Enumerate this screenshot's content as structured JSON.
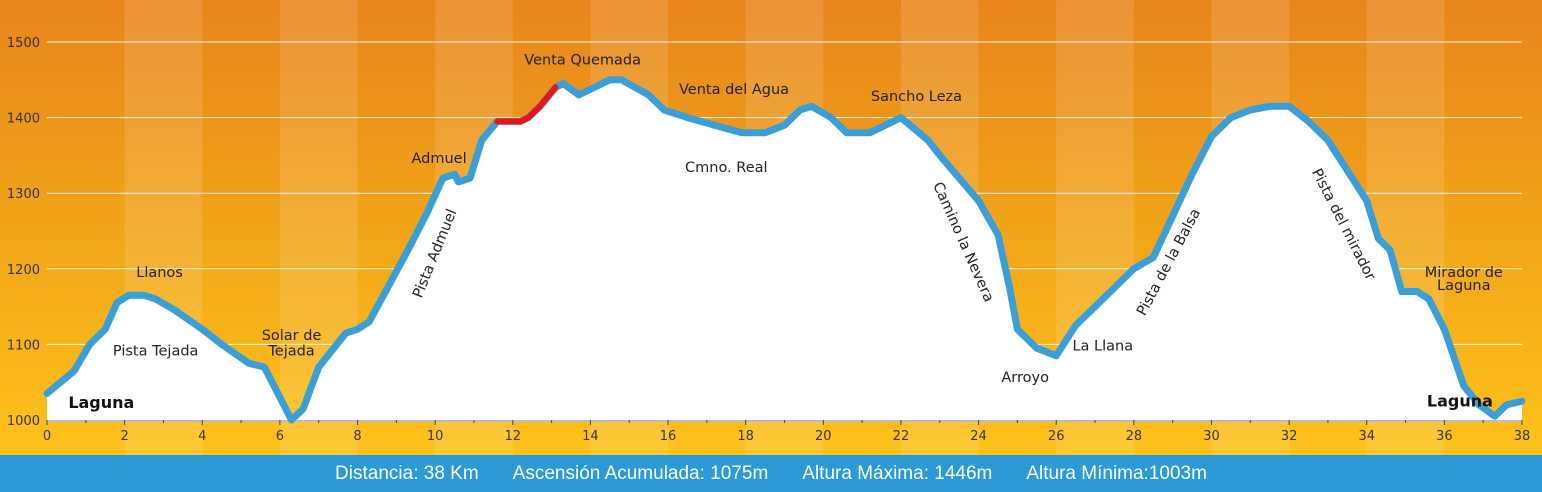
{
  "chart_data": {
    "type": "area",
    "title": "",
    "xlabel": "",
    "ylabel": "",
    "xlim": [
      0,
      38
    ],
    "ylim": [
      1000,
      1500
    ],
    "x_ticks": [
      "0",
      "2",
      "4",
      "6",
      "8",
      "10",
      "12",
      "14",
      "16",
      "18",
      "20",
      "22",
      "24",
      "26",
      "28",
      "30",
      "32",
      "34",
      "36",
      "38"
    ],
    "y_ticks": [
      "1000",
      "1100",
      "1200",
      "1300",
      "1400",
      "1500"
    ],
    "grid": "horizontal",
    "x": [
      0,
      0.7,
      1.1,
      1.5,
      1.8,
      2.1,
      2.5,
      2.8,
      3.3,
      4,
      4.5,
      5.2,
      5.6,
      6.3,
      6.6,
      7,
      7.7,
      8,
      8.3,
      9.3,
      9.8,
      10.2,
      10.5,
      10.6,
      10.9,
      11.2,
      11.6,
      11.9,
      12.2,
      12.4,
      12.7,
      13.1,
      13.3,
      13.7,
      14.1,
      14.5,
      14.8,
      15.5,
      15.9,
      16.5,
      17.2,
      17.9,
      18.5,
      19,
      19.4,
      19.7,
      20.2,
      20.6,
      21.2,
      21.6,
      22,
      22.7,
      23,
      23.5,
      24,
      24.5,
      24.8,
      25,
      25.5,
      26,
      26.5,
      27,
      27.5,
      28,
      28.5,
      29,
      29.5,
      30,
      30.5,
      31,
      31.5,
      32,
      32.5,
      33,
      33.5,
      34,
      34.3,
      34.6,
      34.9,
      35.3,
      35.6,
      36,
      36.5,
      36.9,
      37.3,
      37.6,
      38
    ],
    "y": [
      1035,
      1065,
      1100,
      1120,
      1155,
      1165,
      1165,
      1160,
      1145,
      1120,
      1100,
      1075,
      1070,
      1000,
      1015,
      1070,
      1115,
      1120,
      1130,
      1225,
      1275,
      1320,
      1325,
      1315,
      1320,
      1370,
      1395,
      1395,
      1395,
      1400,
      1415,
      1440,
      1445,
      1430,
      1440,
      1450,
      1450,
      1430,
      1410,
      1400,
      1390,
      1380,
      1380,
      1390,
      1410,
      1415,
      1400,
      1380,
      1380,
      1390,
      1400,
      1370,
      1350,
      1320,
      1290,
      1245,
      1175,
      1120,
      1095,
      1085,
      1125,
      1150,
      1175,
      1200,
      1215,
      1270,
      1325,
      1375,
      1400,
      1410,
      1415,
      1415,
      1395,
      1370,
      1330,
      1290,
      1240,
      1225,
      1170,
      1170,
      1160,
      1120,
      1045,
      1020,
      1005,
      1020,
      1025
    ],
    "highlight": {
      "x": [
        11.6,
        13.1
      ],
      "color": "#e8141b"
    },
    "line_color": "#3a9fd6",
    "annotations": [
      {
        "text": "Llanos",
        "x": 2.9,
        "y": 1189,
        "angle": 0,
        "weight": "normal"
      },
      {
        "text": "Pista Tejada",
        "x": 2.8,
        "y": 1085,
        "angle": 0,
        "weight": "normal"
      },
      {
        "text": "Laguna",
        "x": 1.4,
        "y": 1016,
        "angle": 0,
        "weight": "bold"
      },
      {
        "text": "Solar de",
        "x": 6.3,
        "y": 1106,
        "angle": 0,
        "weight": "normal"
      },
      {
        "text": "Tejada",
        "x": 6.3,
        "y": 1085,
        "angle": 0,
        "weight": "normal"
      },
      {
        "text": "Admuel",
        "x": 10.1,
        "y": 1340,
        "angle": 0,
        "weight": "normal"
      },
      {
        "text": "Pista Admuel",
        "x": 10.1,
        "y": 1218,
        "angle": -68,
        "weight": "normal"
      },
      {
        "text": "Venta Quemada",
        "x": 13.8,
        "y": 1470,
        "angle": 0,
        "weight": "normal"
      },
      {
        "text": "Cmno. Real",
        "x": 17.5,
        "y": 1328,
        "angle": 0,
        "weight": "normal"
      },
      {
        "text": "Venta del Agua",
        "x": 17.7,
        "y": 1431,
        "angle": 0,
        "weight": "normal"
      },
      {
        "text": "Sancho Leza",
        "x": 22.4,
        "y": 1422,
        "angle": 0,
        "weight": "normal"
      },
      {
        "text": "Camino la Nevera",
        "x": 23.5,
        "y": 1233,
        "angle": 66,
        "weight": "normal"
      },
      {
        "text": "Arroyo",
        "x": 25.2,
        "y": 1050,
        "angle": 0,
        "weight": "normal"
      },
      {
        "text": "La Llana",
        "x": 27.2,
        "y": 1092,
        "angle": 0,
        "weight": "normal"
      },
      {
        "text": "Pista de la Balsa",
        "x": 29,
        "y": 1206,
        "angle": -62,
        "weight": "normal"
      },
      {
        "text": "Pista del mirador",
        "x": 33.3,
        "y": 1256,
        "angle": 63,
        "weight": "normal"
      },
      {
        "text": "Mirador de",
        "x": 36.5,
        "y": 1189,
        "angle": 0,
        "weight": "normal"
      },
      {
        "text": "Laguna",
        "x": 36.5,
        "y": 1172,
        "angle": 0,
        "weight": "normal"
      },
      {
        "text": "Laguna",
        "x": 36.4,
        "y": 1018,
        "angle": 0,
        "weight": "bold"
      }
    ]
  },
  "footer": {
    "distance": "Distancia: 38 Km",
    "ascent": "Ascensión Acumulada: 1075m",
    "max_altitude": "Altura Máxima: 1446m",
    "min_altitude": "Altura Mínima:1003m"
  }
}
